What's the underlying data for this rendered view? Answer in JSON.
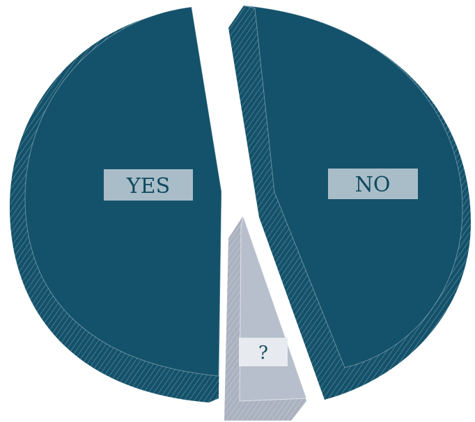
{
  "chart_data": {
    "type": "pie",
    "style": "3d-exploded",
    "categories": [
      "YES",
      "NO",
      "?"
    ],
    "values": [
      47,
      48,
      5
    ],
    "colors": {
      "YES": "#14526b",
      "NO": "#14526b",
      "?": "#b7bfcc"
    },
    "label_box_color": "#a9bdc8",
    "small_label_box_color": "#e7eaef",
    "label_text_color": "#10495f",
    "title": "",
    "legend": "none"
  }
}
